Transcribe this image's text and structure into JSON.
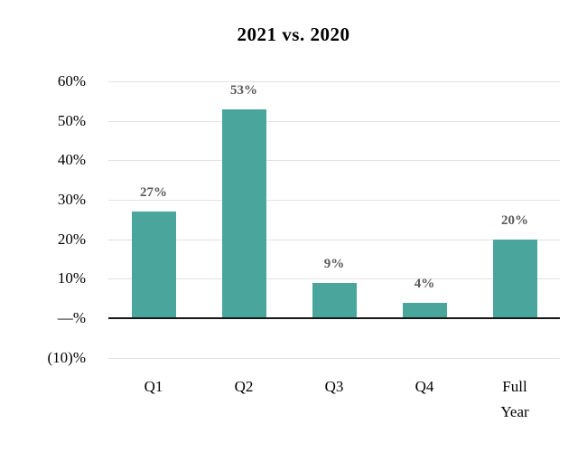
{
  "chart_data": {
    "type": "bar",
    "title": "2021 vs. 2020",
    "categories": [
      "Q1",
      "Q2",
      "Q3",
      "Q4",
      "Full\nYear"
    ],
    "values": [
      27,
      53,
      9,
      4,
      20
    ],
    "data_labels": [
      "27%",
      "53%",
      "9%",
      "4%",
      "20%"
    ],
    "y_ticks": [
      60,
      50,
      40,
      30,
      20,
      10,
      0,
      -10
    ],
    "y_tick_labels": [
      "60%",
      "50%",
      "40%",
      "30%",
      "20%",
      "10%",
      "—%",
      "(10)%"
    ],
    "ylim": [
      -10,
      60
    ],
    "xlabel": "",
    "ylabel": "",
    "grid": true,
    "legend": false,
    "colors": {
      "bar_fill": "#4AA69D",
      "data_label": "#595959",
      "gridline": "#E2E2E2",
      "zero_axis": "#161616",
      "axis_text": "#000000"
    }
  }
}
